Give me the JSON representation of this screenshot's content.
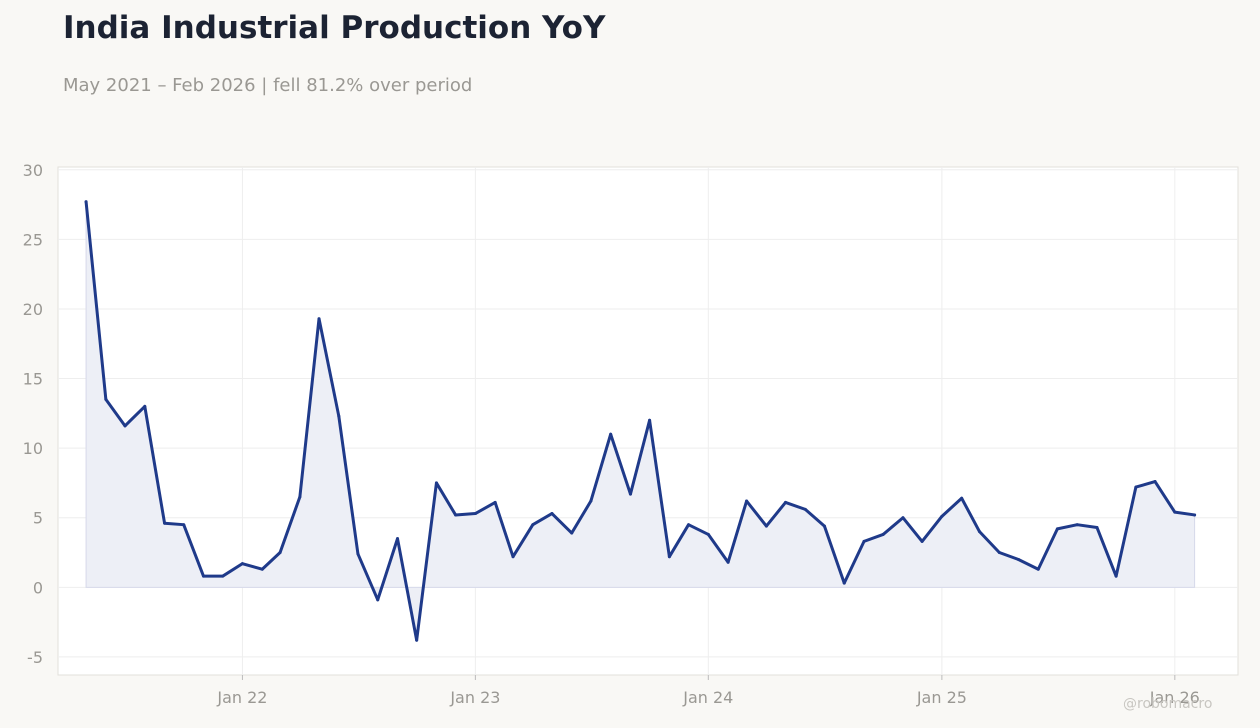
{
  "title": "India Industrial Production YoY",
  "subtitle": "May 2021 – Feb 2026 | fell 81.2% over period",
  "watermark": "@robomacro",
  "colors": {
    "background": "#f9f8f5",
    "plot_background": "#ffffff",
    "line": "#1f3a8a",
    "fill": "#eceef6",
    "grid": "#eeeeee",
    "text_muted": "#9a9893",
    "title": "#1c2333"
  },
  "chart_data": {
    "type": "area",
    "title": "India Industrial Production YoY",
    "xlabel": "",
    "ylabel": "",
    "ylim": [
      -6.3,
      30.2
    ],
    "xlim": [
      "2021-03-18",
      "2026-04-10"
    ],
    "grid": true,
    "legend": "none",
    "y_ticks": [
      -5,
      0,
      5,
      10,
      15,
      20,
      25,
      30
    ],
    "x_ticks": [
      {
        "date": "2022-01-01",
        "label": "Jan 22"
      },
      {
        "date": "2023-01-01",
        "label": "Jan 23"
      },
      {
        "date": "2024-01-01",
        "label": "Jan 24"
      },
      {
        "date": "2025-01-01",
        "label": "Jan 25"
      },
      {
        "date": "2026-01-01",
        "label": "Jan 26"
      }
    ],
    "series": [
      {
        "x": [
          "2021-05",
          "2021-06",
          "2021-07",
          "2021-08",
          "2021-09",
          "2021-10",
          "2021-11",
          "2021-12",
          "2022-01",
          "2022-02",
          "2022-03",
          "2022-04",
          "2022-05",
          "2022-06",
          "2022-07",
          "2022-08",
          "2022-09",
          "2022-10",
          "2022-11",
          "2022-12",
          "2023-01",
          "2023-02",
          "2023-03",
          "2023-04",
          "2023-05",
          "2023-06",
          "2023-07",
          "2023-08",
          "2023-09",
          "2023-10",
          "2023-11",
          "2023-12",
          "2024-01",
          "2024-02",
          "2024-03",
          "2024-04",
          "2024-05",
          "2024-06",
          "2024-07",
          "2024-08",
          "2024-09",
          "2024-10",
          "2024-11",
          "2024-12",
          "2025-01",
          "2025-02",
          "2025-03",
          "2025-04",
          "2025-05",
          "2025-06",
          "2025-07",
          "2025-08",
          "2025-09",
          "2025-10",
          "2025-11",
          "2025-12",
          "2026-01",
          "2026-02"
        ],
        "values": [
          27.7,
          13.5,
          11.6,
          13.0,
          4.6,
          4.5,
          0.8,
          0.8,
          1.7,
          1.3,
          2.5,
          6.5,
          19.3,
          12.3,
          2.4,
          -0.9,
          3.5,
          -3.8,
          7.5,
          5.2,
          5.3,
          6.1,
          2.2,
          4.5,
          5.3,
          3.9,
          6.2,
          11.0,
          6.7,
          12.0,
          2.2,
          4.5,
          3.8,
          1.8,
          6.2,
          4.4,
          6.1,
          5.6,
          4.4,
          0.3,
          3.3,
          3.8,
          5.0,
          3.3,
          5.1,
          6.4,
          4.0,
          2.5,
          2.0,
          1.3,
          4.2,
          4.5,
          4.3,
          0.8,
          7.2,
          7.6,
          5.4,
          5.2
        ]
      }
    ]
  }
}
